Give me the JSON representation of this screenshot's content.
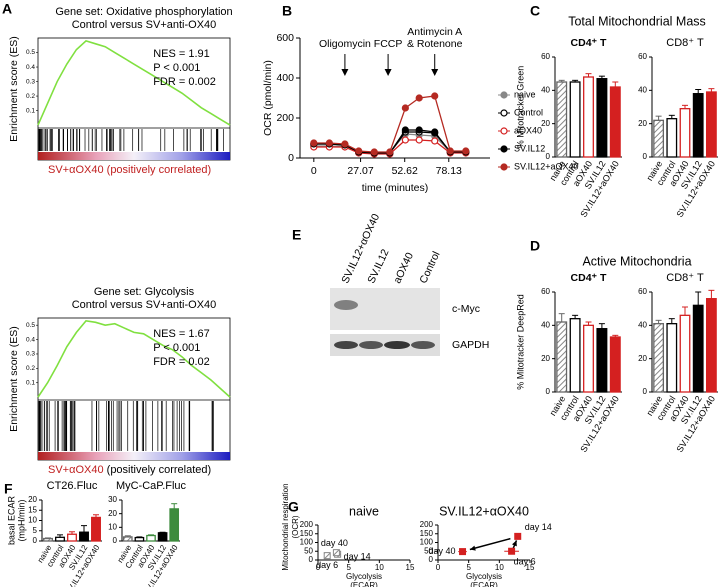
{
  "chart_data": [
    {
      "type": "gsea",
      "panel": "A",
      "title": [
        "Gene set: Oxidative phosphorylation",
        "Control versus SV+anti-OX40"
      ],
      "ylabel": "Enrichment score (ES)",
      "x": [
        0,
        5,
        10,
        15,
        20,
        25,
        30,
        35,
        40,
        45,
        50,
        55,
        60,
        65,
        70,
        75,
        80,
        85,
        90,
        95,
        100
      ],
      "values": [
        0,
        0.15,
        0.3,
        0.42,
        0.52,
        0.58,
        0.56,
        0.54,
        0.5,
        0.46,
        0.42,
        0.38,
        0.34,
        0.3,
        0.26,
        0.22,
        0.17,
        0.12,
        0.08,
        0.04,
        0
      ],
      "xlim": [
        0,
        100
      ],
      "ylim": [
        -0.02,
        0.6
      ],
      "yticks": [
        0.1,
        0.2,
        0.3,
        0.4,
        0.5
      ],
      "color": "#80e040",
      "stats": [
        "NES = 1.91",
        "P < 0.001",
        "FDR =  0.002"
      ],
      "footer": [
        "SV+αOX40",
        "(positively correlated)"
      ]
    },
    {
      "type": "gsea",
      "title": [
        "Gene set: Glycolysis",
        "Control versus SV+anti-OX40"
      ],
      "ylabel": "Enrichment score (ES)",
      "x": [
        0,
        5,
        10,
        15,
        20,
        25,
        30,
        35,
        40,
        45,
        50,
        55,
        60,
        65,
        70,
        75,
        80,
        85,
        90,
        95,
        100
      ],
      "values": [
        0,
        0.1,
        0.22,
        0.35,
        0.45,
        0.53,
        0.52,
        0.5,
        0.51,
        0.48,
        0.45,
        0.44,
        0.4,
        0.36,
        0.33,
        0.28,
        0.22,
        0.17,
        0.12,
        0.06,
        0
      ],
      "xlim": [
        0,
        100
      ],
      "ylim": [
        -0.02,
        0.55
      ],
      "yticks": [
        0.1,
        0.2,
        0.3,
        0.4,
        0.5
      ],
      "color": "#80e040",
      "stats": [
        "NES = 1.67",
        "P < 0.001",
        "FDR = 0.02"
      ],
      "footer": [
        "SV+αOX40",
        "(positively correlated)"
      ]
    },
    {
      "type": "line",
      "panel": "B",
      "ylabel": "OCR (pmol/min)",
      "xlabel": "time (minutes)",
      "x": [
        0,
        9,
        18,
        26,
        35,
        44,
        53,
        61,
        70,
        79,
        88
      ],
      "xlim": [
        -8,
        102
      ],
      "xticks": [
        0,
        27.07,
        52.62,
        78.13
      ],
      "ylim": [
        0,
        600
      ],
      "yticks": [
        0,
        200,
        400,
        600
      ],
      "injections": [
        {
          "label": [
            "Oligomycin"
          ],
          "time": 18
        },
        {
          "label": [
            "FCCP"
          ],
          "time": 43
        },
        {
          "label": [
            "Antimycin A",
            "& Rotenone"
          ],
          "time": 70
        }
      ],
      "series": [
        {
          "name": "naive",
          "color": "#888888",
          "marker": "filled",
          "values": [
            60,
            60,
            58,
            30,
            28,
            28,
            120,
            115,
            110,
            30,
            30
          ]
        },
        {
          "name": "Control",
          "color": "#000000",
          "marker": "open",
          "values": [
            70,
            70,
            65,
            30,
            25,
            25,
            130,
            130,
            125,
            30,
            30
          ]
        },
        {
          "name": "aOX40",
          "color": "#d42020",
          "marker": "open",
          "values": [
            55,
            55,
            55,
            25,
            20,
            20,
            90,
            90,
            85,
            25,
            25
          ]
        },
        {
          "name": "SV.IL12",
          "color": "#000000",
          "marker": "filled",
          "values": [
            70,
            70,
            65,
            30,
            25,
            25,
            140,
            140,
            130,
            30,
            30
          ]
        },
        {
          "name": "SV.IL12+aOX40",
          "color": "#b52a22",
          "marker": "filled",
          "values": [
            75,
            75,
            70,
            35,
            30,
            30,
            250,
            300,
            310,
            35,
            35
          ]
        }
      ]
    },
    {
      "type": "bar",
      "panel": "C",
      "heading": "Total Mitochondrial Mass",
      "title": "CD4⁺ T",
      "ylabel": "% Mitotracker Green",
      "categories": [
        "naive",
        "control",
        "aOX40",
        "SV.IL12",
        "SV.IL12+aOX40"
      ],
      "values": [
        45,
        45,
        48,
        47,
        42
      ],
      "errors": [
        1,
        1,
        2,
        1.5,
        3
      ],
      "fills": [
        "hatch",
        "none",
        "none",
        "#000000",
        "#d42020"
      ],
      "strokes": [
        "#666666",
        "#000000",
        "#d42020",
        "#000000",
        "#d42020"
      ],
      "ylim": [
        0,
        60
      ],
      "yticks": [
        0,
        20,
        40,
        60
      ]
    },
    {
      "type": "bar",
      "title": "CD8⁺ T",
      "categories": [
        "naive",
        "control",
        "aOX40",
        "SV.IL12",
        "SV.IL12+aOX40"
      ],
      "values": [
        22,
        23,
        29,
        38,
        39
      ],
      "errors": [
        2.5,
        2,
        2,
        2.5,
        2
      ],
      "fills": [
        "hatch",
        "none",
        "none",
        "#000000",
        "#d42020"
      ],
      "strokes": [
        "#666666",
        "#000000",
        "#d42020",
        "#000000",
        "#d42020"
      ],
      "ylim": [
        0,
        60
      ],
      "yticks": [
        0,
        20,
        40,
        60
      ]
    },
    {
      "type": "bar",
      "panel": "D",
      "heading": "Active Mitochondria",
      "title": "CD4⁺ T",
      "ylabel": "% Mitotracker DeepRed",
      "categories": [
        "naive",
        "control",
        "aOX40",
        "SV.IL12",
        "SV.IL12+aOX40"
      ],
      "values": [
        42,
        44,
        40,
        38,
        33
      ],
      "errors": [
        5,
        2,
        2,
        3,
        1
      ],
      "fills": [
        "hatch",
        "none",
        "none",
        "#000000",
        "#d42020"
      ],
      "strokes": [
        "#666666",
        "#000000",
        "#d42020",
        "#000000",
        "#d42020"
      ],
      "ylim": [
        0,
        60
      ],
      "yticks": [
        0,
        20,
        40,
        60
      ]
    },
    {
      "type": "bar",
      "title": "CD8⁺ T",
      "categories": [
        "naive",
        "control",
        "aOX40",
        "SV.IL12",
        "SV.IL12+aOX40"
      ],
      "values": [
        41,
        41,
        46,
        52,
        56
      ],
      "errors": [
        2,
        3,
        5,
        8,
        5
      ],
      "fills": [
        "hatch",
        "none",
        "none",
        "#000000",
        "#d42020"
      ],
      "strokes": [
        "#666666",
        "#000000",
        "#d42020",
        "#000000",
        "#d42020"
      ],
      "ylim": [
        0,
        60
      ],
      "yticks": [
        0,
        20,
        40,
        60
      ]
    },
    {
      "type": "bar",
      "panel": "F",
      "title": "CT26.Fluc",
      "ylabel": [
        "basal ECAR",
        "(mpH/min)"
      ],
      "categories": [
        "naive",
        "control",
        "aOX40",
        "SV.IL12",
        "SV.IL12+aOX40"
      ],
      "values": [
        1.2,
        1.8,
        3.3,
        4.3,
        11.5
      ],
      "errors": [
        0.3,
        1.2,
        1.2,
        3.2,
        1.3
      ],
      "fills": [
        "hatch",
        "none",
        "none",
        "#000000",
        "#d42020"
      ],
      "strokes": [
        "#666666",
        "#000000",
        "#d42020",
        "#000000",
        "#d42020"
      ],
      "ylim": [
        0,
        20
      ],
      "yticks": [
        0,
        5,
        10,
        15,
        20
      ]
    },
    {
      "type": "bar",
      "title": "MyC-CaP.Fluc",
      "categories": [
        "naive",
        "Control",
        "aOX40",
        "SV.IL12",
        "SV.IL12+aOX40"
      ],
      "values": [
        3,
        2.5,
        4,
        6,
        23.5
      ],
      "errors": [
        0.8,
        0.5,
        0.5,
        0.4,
        3.8
      ],
      "fills": [
        "hatch",
        "none",
        "none",
        "#000000",
        "#3d8b3d"
      ],
      "strokes": [
        "#666666",
        "#000000",
        "#3d8b3d",
        "#000000",
        "#3d8b3d"
      ],
      "ylim": [
        0,
        30
      ],
      "yticks": [
        0,
        10,
        20,
        30
      ]
    },
    {
      "type": "scatter",
      "panel": "G",
      "title": "naive",
      "ylabel": [
        "Mitochondrial respiration",
        "(OCR)"
      ],
      "xlabel": [
        "Glycolysis",
        "(ECAR)"
      ],
      "x": [
        1.5,
        3.2,
        3
      ],
      "values": [
        25,
        33,
        42
      ],
      "xerr": [
        0.3,
        0.5,
        0.5
      ],
      "yerr": [
        5,
        5,
        6
      ],
      "labels": [
        "day 6",
        "day 14",
        "day 40"
      ],
      "color": "#888888",
      "fill": "hatch",
      "xlim": [
        0,
        15
      ],
      "xticks": [
        0,
        5,
        10,
        15
      ],
      "ylim": [
        0,
        200
      ],
      "yticks": [
        0,
        50,
        100,
        150,
        200
      ]
    },
    {
      "type": "scatter",
      "title": "SV.IL12+αOX40",
      "xlabel": [
        "Glycolysis",
        "(ECAR)"
      ],
      "x": [
        12,
        13,
        4
      ],
      "values": [
        50,
        135,
        48
      ],
      "xerr": [
        1.2,
        0.5,
        0.7
      ],
      "yerr": [
        4,
        12,
        4
      ],
      "labels": [
        "day 6",
        "day 14",
        "day 40"
      ],
      "color": "#d42020",
      "fill": "#d42020",
      "xlim": [
        0,
        15
      ],
      "xticks": [
        0,
        5,
        10,
        15
      ],
      "ylim": [
        0,
        200
      ],
      "yticks": [
        0,
        50,
        100,
        150,
        200
      ]
    }
  ],
  "blot": {
    "panel": "E",
    "lanes": [
      "SV.IL12+αOX40",
      "SV.IL12",
      "aOX40",
      "Control"
    ],
    "bands": [
      "c-Myc",
      "GAPDH"
    ]
  }
}
